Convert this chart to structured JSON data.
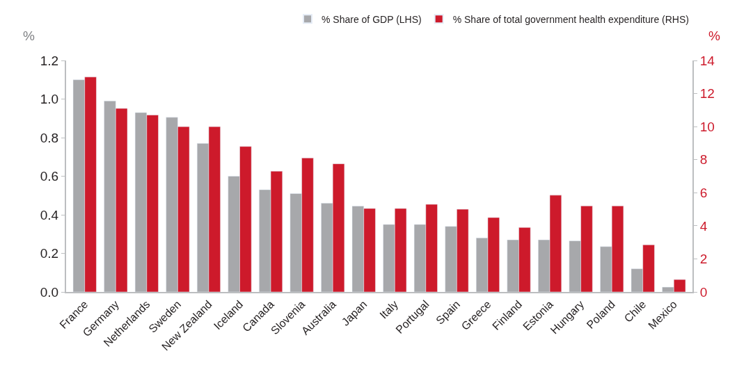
{
  "chart_data": {
    "type": "bar",
    "ylabel": "%",
    "y2label": "%",
    "categories": [
      "France",
      "Germany",
      "Netherlands",
      "Sweden",
      "New Zealand",
      "Iceland",
      "Canada",
      "Slovenia",
      "Australia",
      "Japan",
      "Italy",
      "Portugal",
      "Spain",
      "Greece",
      "Finland",
      "Estonia",
      "Hungary",
      "Poland",
      "Chile",
      "Mexico"
    ],
    "series": [
      {
        "name": "% Share of GDP (LHS)",
        "color": "#a7a8ab",
        "values": [
          1.1,
          0.99,
          0.93,
          0.905,
          0.77,
          0.6,
          0.53,
          0.51,
          0.46,
          0.445,
          0.35,
          0.35,
          0.34,
          0.28,
          0.27,
          0.27,
          0.265,
          0.235,
          0.12,
          0.025
        ]
      },
      {
        "name": "% Share of total government health expenditure (RHS)",
        "color": "#cd1a2b",
        "axis": "y2",
        "values": [
          13.0,
          11.1,
          10.7,
          10.0,
          10.0,
          8.8,
          7.3,
          8.1,
          7.75,
          5.05,
          5.05,
          5.3,
          5.0,
          4.5,
          3.9,
          5.85,
          5.2,
          5.2,
          2.85,
          0.75
        ]
      }
    ],
    "ylim": [
      0,
      1.2
    ],
    "yticks": [
      {
        "value": 0,
        "label": "0.0"
      },
      0.2,
      0.4,
      0.6,
      0.8,
      {
        "value": 1,
        "label": "1.0"
      },
      1.2
    ],
    "y2lim": [
      0,
      14
    ],
    "y2ticks": [
      0,
      2,
      4,
      6,
      8,
      10,
      12,
      14
    ],
    "legend": "top right"
  }
}
